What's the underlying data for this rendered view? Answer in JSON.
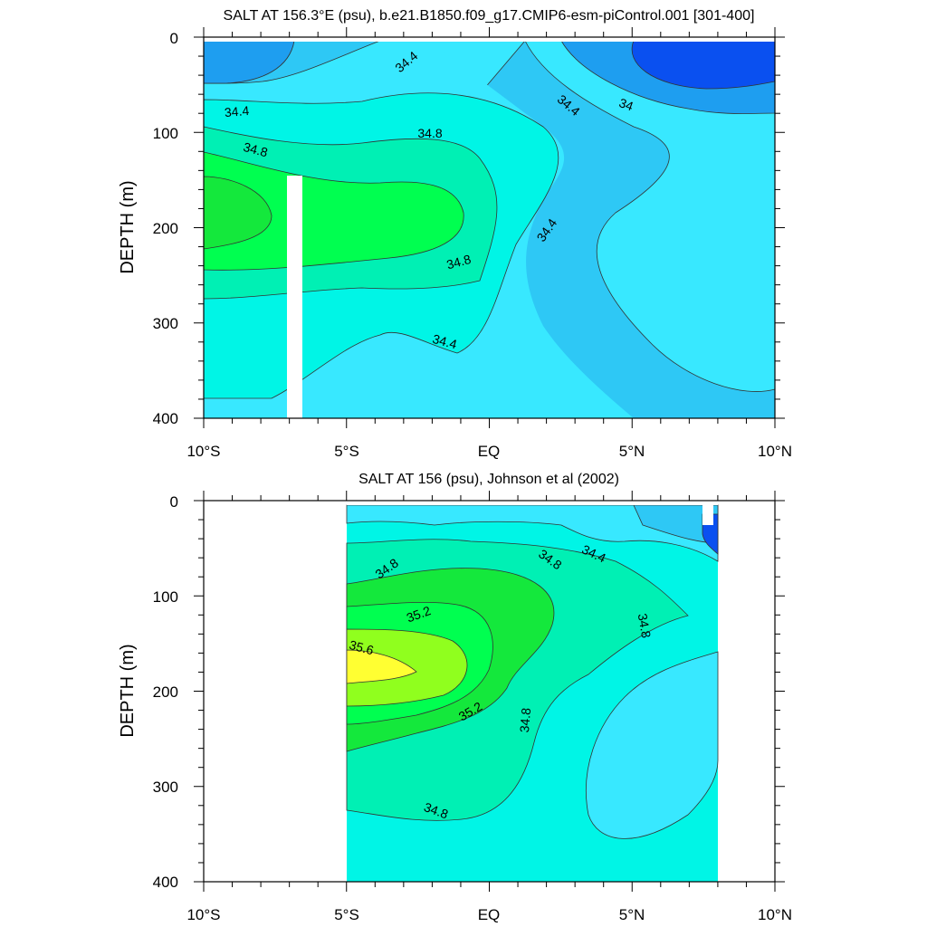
{
  "chart_data": [
    {
      "type": "contour",
      "title": "SALT AT 156.3°E (psu), b.e21.B1850.f09_g17.CMIP6-esm-piControl.001 [301-400]",
      "ylabel": "DEPTH (m)",
      "xlim": [
        -10,
        10
      ],
      "ylim": [
        400,
        0
      ],
      "x_ticks": [
        {
          "value": -10,
          "label": "10°S"
        },
        {
          "value": -5,
          "label": "5°S"
        },
        {
          "value": 0,
          "label": "EQ"
        },
        {
          "value": 5,
          "label": "5°N"
        },
        {
          "value": 10,
          "label": "10°N"
        }
      ],
      "y_ticks": [
        {
          "value": 0,
          "label": "0"
        },
        {
          "value": 100,
          "label": "100"
        },
        {
          "value": 200,
          "label": "200"
        },
        {
          "value": 300,
          "label": "300"
        },
        {
          "value": 400,
          "label": "400"
        }
      ],
      "contour_interval": 0.2,
      "fill_colors": {
        "lt_34.0": "#0a50f0",
        "34.0_34.2": "#1e9ef0",
        "34.2_34.4": "#2ec8f5",
        "34.4_34.6": "#38e8ff",
        "34.6_34.8": "#00f5e6",
        "34.8_35.0": "#00f0b4",
        "35.0_35.2": "#00ff50",
        "35.2_35.4": "#14e83c",
        "35.4_35.6": "#90ff1e",
        "gt_35.6": "#ffff32"
      },
      "contour_labels": [
        {
          "value": "34.4",
          "x": -2.2,
          "y": 25,
          "angle": -40
        },
        {
          "value": "34.4",
          "x": -9.4,
          "y": 78,
          "angle": -5
        },
        {
          "value": "34.8",
          "x": -8.2,
          "y": 120,
          "angle": 15
        },
        {
          "value": "34.8",
          "x": -2.1,
          "y": 97,
          "angle": 0
        },
        {
          "value": "34.4",
          "x": 2.7,
          "y": 70,
          "angle": 40
        },
        {
          "value": "34",
          "x": 4.8,
          "y": 70,
          "angle": 20
        },
        {
          "value": "34.4",
          "x": 2.1,
          "y": 200,
          "angle": -55
        },
        {
          "value": "34.8",
          "x": -1.1,
          "y": 235,
          "angle": -15
        },
        {
          "value": "34.4",
          "x": -1.7,
          "y": 323,
          "angle": 15
        }
      ],
      "missing_regions": [
        {
          "x0": -7.15,
          "x1": -6.65,
          "y0": 145,
          "y1": 400
        }
      ]
    },
    {
      "type": "contour",
      "title": "SALT AT 156 (psu), Johnson et al (2002)",
      "ylabel": "DEPTH (m)",
      "xlim": [
        -10,
        10
      ],
      "ylim": [
        400,
        0
      ],
      "x_ticks": [
        {
          "value": -10,
          "label": "10°S"
        },
        {
          "value": -5,
          "label": "5°S"
        },
        {
          "value": 0,
          "label": "EQ"
        },
        {
          "value": 5,
          "label": "5°N"
        },
        {
          "value": 10,
          "label": "10°N"
        }
      ],
      "y_ticks": [
        {
          "value": 0,
          "label": "0"
        },
        {
          "value": 100,
          "label": "100"
        },
        {
          "value": 200,
          "label": "200"
        },
        {
          "value": 300,
          "label": "300"
        },
        {
          "value": 400,
          "label": "400"
        }
      ],
      "data_extent": {
        "x": [
          -5,
          8
        ],
        "y": [
          5,
          400
        ]
      },
      "contour_labels": [
        {
          "value": "34.8",
          "x": -3.9,
          "y": 72,
          "angle": -35
        },
        {
          "value": "34.4",
          "x": 4.0,
          "y": 55,
          "angle": 25
        },
        {
          "value": "34.8",
          "x": 2.5,
          "y": 63,
          "angle": 35
        },
        {
          "value": "35.2",
          "x": -2.6,
          "y": 118,
          "angle": -20
        },
        {
          "value": "35.6",
          "x": -4.5,
          "y": 158,
          "angle": 15
        },
        {
          "value": "35.2",
          "x": -0.6,
          "y": 220,
          "angle": -30
        },
        {
          "value": "34.8",
          "x": 1.3,
          "y": 255,
          "angle": -85
        },
        {
          "value": "34.8",
          "x": 5.4,
          "y": 130,
          "angle": 80
        },
        {
          "value": "34.8",
          "x": -1.7,
          "y": 330,
          "angle": 20
        }
      ],
      "missing_regions": [
        {
          "x0": 7.45,
          "x1": 7.75,
          "y0": 5,
          "y1": 25
        }
      ]
    }
  ]
}
